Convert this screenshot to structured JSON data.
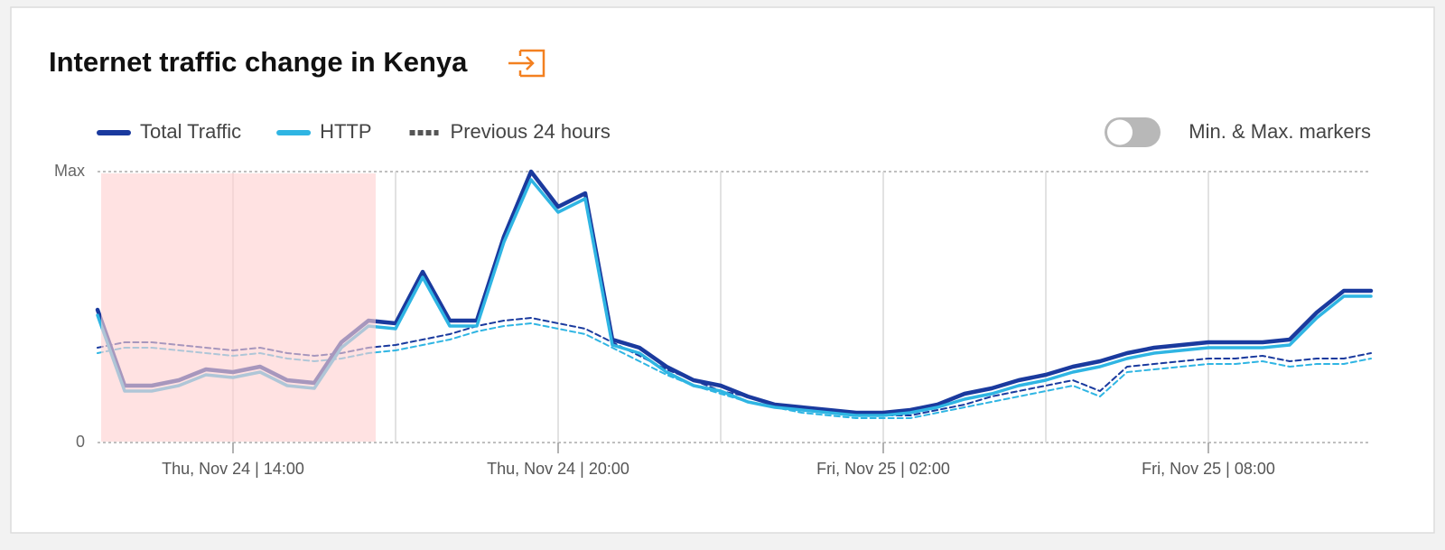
{
  "chart_data": {
    "type": "line",
    "title": "Internet traffic change in Kenya",
    "toggle_label": "Min. & Max. markers",
    "toggle_on": false,
    "previous_label": "Previous 24 hours",
    "previous_legend_color": "#555555",
    "x": [
      "Nov 24 11:30",
      "Nov 24 12:00",
      "Nov 24 12:30",
      "Nov 24 13:00",
      "Nov 24 13:30",
      "Nov 24 14:00",
      "Nov 24 14:30",
      "Nov 24 15:00",
      "Nov 24 15:30",
      "Nov 24 16:00",
      "Nov 24 16:30",
      "Nov 24 17:00",
      "Nov 24 17:30",
      "Nov 24 18:00",
      "Nov 24 18:30",
      "Nov 24 19:00",
      "Nov 24 19:30",
      "Nov 24 20:00",
      "Nov 24 20:30",
      "Nov 24 21:00",
      "Nov 24 21:30",
      "Nov 24 22:00",
      "Nov 24 22:30",
      "Nov 24 23:00",
      "Nov 24 23:30",
      "Nov 25 00:00",
      "Nov 25 00:30",
      "Nov 25 01:00",
      "Nov 25 01:30",
      "Nov 25 02:00",
      "Nov 25 02:30",
      "Nov 25 03:00",
      "Nov 25 03:30",
      "Nov 25 04:00",
      "Nov 25 04:30",
      "Nov 25 05:00",
      "Nov 25 05:30",
      "Nov 25 06:00",
      "Nov 25 06:30",
      "Nov 25 07:00",
      "Nov 25 07:30",
      "Nov 25 08:00",
      "Nov 25 08:30",
      "Nov 25 09:00",
      "Nov 25 09:30",
      "Nov 25 10:00",
      "Nov 25 10:30",
      "Nov 25 11:00"
    ],
    "series": [
      {
        "name": "Total Traffic",
        "color": "#1a3a9e",
        "values": [
          49,
          21,
          21,
          23,
          27,
          26,
          28,
          23,
          22,
          37,
          45,
          44,
          63,
          45,
          45,
          76,
          100,
          87,
          92,
          38,
          35,
          28,
          23,
          21,
          17,
          14,
          13,
          12,
          11,
          11,
          12,
          14,
          18,
          20,
          23,
          25,
          28,
          30,
          33,
          35,
          36,
          37,
          37,
          37,
          38,
          48,
          56,
          56
        ],
        "previous": [
          35,
          37,
          37,
          36,
          35,
          34,
          35,
          33,
          32,
          33,
          35,
          36,
          38,
          40,
          43,
          45,
          46,
          44,
          42,
          37,
          32,
          27,
          23,
          19,
          17,
          14,
          12,
          11,
          10,
          10,
          10,
          12,
          14,
          17,
          19,
          21,
          23,
          19,
          28,
          29,
          30,
          31,
          31,
          32,
          30,
          31,
          31,
          33
        ]
      },
      {
        "name": "HTTP",
        "color": "#2fb5e3",
        "values": [
          47,
          19,
          19,
          21,
          25,
          24,
          26,
          21,
          20,
          35,
          43,
          42,
          61,
          43,
          43,
          74,
          97,
          85,
          90,
          36,
          33,
          26,
          21,
          19,
          15,
          13,
          12,
          11,
          10,
          10,
          11,
          13,
          16,
          18,
          21,
          23,
          26,
          28,
          31,
          33,
          34,
          35,
          35,
          35,
          36,
          46,
          54,
          54
        ],
        "previous": [
          33,
          35,
          35,
          34,
          33,
          32,
          33,
          31,
          30,
          31,
          33,
          34,
          36,
          38,
          41,
          43,
          44,
          42,
          40,
          35,
          30,
          25,
          21,
          18,
          15,
          13,
          11,
          10,
          9,
          9,
          9,
          11,
          13,
          15,
          17,
          19,
          21,
          17,
          26,
          27,
          28,
          29,
          29,
          30,
          28,
          29,
          29,
          31
        ]
      }
    ],
    "xlim": [
      "Nov 24 11:30",
      "Nov 25 11:00"
    ],
    "xticks": [
      {
        "value": "Nov 24 14:00",
        "label": "Thu, Nov 24 | 14:00"
      },
      {
        "value": "Nov 24 20:00",
        "label": "Thu, Nov 24 | 20:00"
      },
      {
        "value": "Nov 25 02:00",
        "label": "Fri, Nov 25 | 02:00"
      },
      {
        "value": "Nov 25 08:00",
        "label": "Fri, Nov 25 | 08:00"
      }
    ],
    "xgrid": [
      "Nov 24 17:00",
      "Nov 24 23:00",
      "Nov 25 05:00"
    ],
    "ylim": [
      0,
      100
    ],
    "yticks": [
      0,
      {
        "value": 100,
        "label": "Max"
      }
    ],
    "highlight": {
      "x0": "Nov 24 11:34",
      "x1": "Nov 24 16:38",
      "color": "#ffd0d0"
    }
  }
}
